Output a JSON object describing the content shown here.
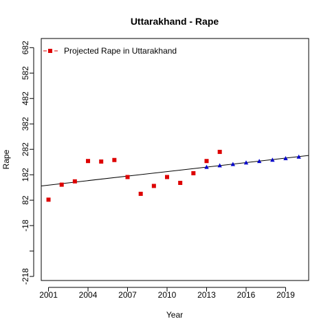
{
  "chart_data": {
    "type": "scatter",
    "title": "Uttarakhand  -  Rape",
    "xlabel": "Year",
    "ylabel": "Rape",
    "xlim": [
      2000.45,
      2020.75
    ],
    "ylim": [
      -234,
      718
    ],
    "x_ticks": [
      2001,
      2004,
      2007,
      2010,
      2013,
      2016,
      2019
    ],
    "y_ticks": [
      -218,
      -118,
      -18,
      82,
      182,
      282,
      382,
      482,
      582,
      682
    ],
    "y_tick_labels": [
      "-218",
      "",
      "-18",
      "82",
      "182",
      "282",
      "382",
      "482",
      "582",
      "682"
    ],
    "grid": false,
    "legend_position": "top-left",
    "legend": [
      {
        "label": "Projected Rape  in  Uttarakhand",
        "color": "#dd0000",
        "marker": "square",
        "line": "dashed"
      }
    ],
    "series": [
      {
        "name": "Projected Rape  in  Uttarakhand",
        "marker": "square",
        "color": "#dd0000",
        "x": [
          2001,
          2002,
          2003,
          2004,
          2005,
          2006,
          2007,
          2008,
          2009,
          2010,
          2011,
          2012,
          2013,
          2014
        ],
        "y": [
          84,
          143,
          156,
          236,
          234,
          240,
          173,
          107,
          138,
          173,
          150,
          188,
          236,
          272
        ]
      },
      {
        "marker": "triangle",
        "color": "#0000cc",
        "x": [
          2013,
          2014,
          2015,
          2016,
          2017,
          2018,
          2019,
          2020
        ],
        "y": [
          212,
          218,
          223,
          229,
          235,
          240,
          246,
          252
        ]
      }
    ],
    "trend_line": {
      "x": [
        2000.45,
        2020.75
      ],
      "y": [
        138,
        258
      ],
      "color": "#000000"
    }
  }
}
